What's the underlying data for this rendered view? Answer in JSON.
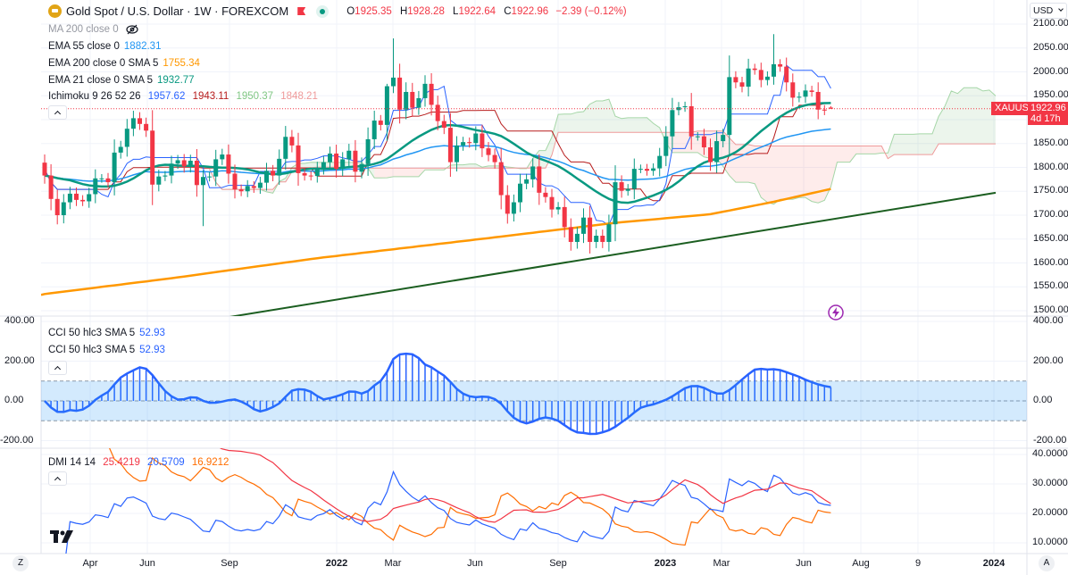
{
  "header": {
    "symbol_title": "Gold Spot / U.S. Dollar · 1W · FOREXCOM",
    "o_label": "O",
    "o": "1925.35",
    "h_label": "H",
    "h": "1928.28",
    "l_label": "L",
    "l": "1922.64",
    "c_label": "C",
    "c": "1922.96",
    "change": "−2.39 (−0.12%)"
  },
  "indicators": {
    "ma200": {
      "name": "MA 200 close 0"
    },
    "ema55": {
      "name": "EMA 55 close 0",
      "value": "1882.31",
      "color": "#2196f3"
    },
    "ema200": {
      "name": "EMA 200 close 0 SMA 5",
      "value": "1755.34",
      "color": "#ff9800"
    },
    "ema21": {
      "name": "EMA 21 close 0 SMA 5",
      "value": "1932.77",
      "color": "#089981"
    },
    "ichimoku": {
      "name": "Ichimoku 9 26 52 26",
      "conversion": "1957.62",
      "base": "1943.11",
      "lagging": "1950.37",
      "lead": "1848.21"
    }
  },
  "price_axis": {
    "currency": "USD",
    "labels": [
      "2100.00",
      "2050.00",
      "2000.00",
      "1950.00",
      "1900.00",
      "1850.00",
      "1800.00",
      "1750.00",
      "1700.00",
      "1650.00",
      "1600.00",
      "1550.00",
      "1500.00"
    ],
    "symbol_tag": "XAUUSD",
    "last_price": "1922.96",
    "countdown": "4d 17h"
  },
  "cci": {
    "legend": [
      {
        "name": "CCI 50 hlc3 SMA 5",
        "value": "52.93"
      },
      {
        "name": "CCI 50 hlc3 SMA 5",
        "value": "52.93"
      }
    ],
    "axis_labels": [
      "400.00",
      "200.00",
      "0.00",
      "-200.00"
    ]
  },
  "dmi": {
    "name": "DMI 14 14",
    "adx": "25.4219",
    "plus_di": "20.5709",
    "minus_di": "16.9212",
    "axis_labels": [
      "40.0000",
      "30.0000",
      "20.0000",
      "10.0000"
    ]
  },
  "time_axis": {
    "labels": [
      "Apr",
      "Jun",
      "Sep",
      "2022",
      "Mar",
      "Jun",
      "Sep",
      "2023",
      "Mar",
      "Jun",
      "Aug",
      "9",
      "2024"
    ],
    "timezone_button": "Z",
    "auto_button": "A"
  },
  "chart_data": {
    "type": "candlestick",
    "interval": "1W",
    "first_open": 1810,
    "close": [
      1783,
      1734,
      1700,
      1727,
      1745,
      1732,
      1729,
      1744,
      1777,
      1777,
      1769,
      1831,
      1843,
      1881,
      1903,
      1891,
      1877,
      1764,
      1781,
      1783,
      1808,
      1815,
      1802,
      1814,
      1763,
      1780,
      1781,
      1817,
      1827,
      1787,
      1754,
      1750,
      1761,
      1757,
      1768,
      1793,
      1783,
      1818,
      1864,
      1846,
      1788,
      1783,
      1782,
      1798,
      1811,
      1829,
      1797,
      1817,
      1835,
      1791,
      1807,
      1859,
      1898,
      1889,
      1970,
      1988,
      1921,
      1958,
      1925,
      1945,
      1975,
      1931,
      1897,
      1883,
      1811,
      1846,
      1853,
      1851,
      1871,
      1840,
      1826,
      1811,
      1742,
      1703,
      1727,
      1766,
      1775,
      1802,
      1747,
      1738,
      1712,
      1717,
      1675,
      1644,
      1661,
      1695,
      1644,
      1657,
      1644,
      1681,
      1769,
      1751,
      1755,
      1797,
      1797,
      1793,
      1798,
      1824,
      1865,
      1920,
      1926,
      1928,
      1865,
      1865,
      1842,
      1811,
      1855,
      1868,
      1989,
      1978,
      1969,
      2007,
      2004,
      1983,
      1990,
      2016,
      2011,
      1978,
      1946,
      1948,
      1961,
      1958,
      1921,
      1919,
      1922.96
    ],
    "overrides": [
      {
        "i": 25,
        "l": 1677
      },
      {
        "i": 54,
        "h": 1975
      },
      {
        "i": 55,
        "h": 2070
      },
      {
        "i": 115,
        "h": 2079
      },
      {
        "i": 124,
        "o": 1925.35,
        "h": 1928.28,
        "l": 1922.64
      }
    ],
    "ema200_series": [
      [
        0,
        1535
      ],
      [
        20,
        1568
      ],
      [
        43,
        1610
      ],
      [
        70,
        1652
      ],
      [
        90,
        1684
      ],
      [
        105,
        1702
      ],
      [
        115,
        1728
      ],
      [
        124,
        1755
      ]
    ],
    "trendline": [
      [
        25,
        1478
      ],
      [
        150,
        1747
      ]
    ],
    "ylim": [
      1500,
      2100
    ],
    "cci_ylim": [
      -200,
      400
    ],
    "cci_band": [
      -100,
      100
    ],
    "dmi_ylim": [
      10,
      40
    ],
    "colors": {
      "up": "#089981",
      "down": "#f23645",
      "conversion": "#2962ff",
      "base": "#b71c1c",
      "spanA": "#a5d6a7",
      "spanB": "#ef9a9a",
      "cci": "#2962ff",
      "adx": "#f23645",
      "plus_di": "#2962ff",
      "minus_di": "#ff6d00",
      "trend": "#1b5e20"
    }
  }
}
